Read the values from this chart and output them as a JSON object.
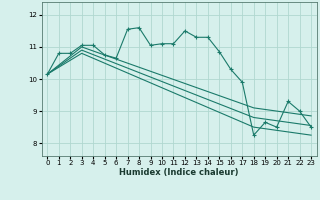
{
  "xlabel": "Humidex (Indice chaleur)",
  "xlim": [
    -0.5,
    23.5
  ],
  "ylim": [
    7.6,
    12.4
  ],
  "yticks": [
    8,
    9,
    10,
    11,
    12
  ],
  "xticks": [
    0,
    1,
    2,
    3,
    4,
    5,
    6,
    7,
    8,
    9,
    10,
    11,
    12,
    13,
    14,
    15,
    16,
    17,
    18,
    19,
    20,
    21,
    22,
    23
  ],
  "bg_color": "#d6f0ec",
  "grid_color": "#b0d8d0",
  "line_color": "#1a7a6a",
  "main_line": {
    "x": [
      0,
      1,
      2,
      3,
      4,
      5,
      6,
      7,
      8,
      9,
      10,
      11,
      12,
      13,
      14,
      15,
      16,
      17,
      18,
      19,
      20,
      21,
      22,
      23
    ],
    "y": [
      10.15,
      10.8,
      10.8,
      11.05,
      11.05,
      10.75,
      10.65,
      11.55,
      11.6,
      11.05,
      11.1,
      11.1,
      11.5,
      11.3,
      11.3,
      10.85,
      10.3,
      9.9,
      8.25,
      8.65,
      8.5,
      9.3,
      9.0,
      8.5
    ]
  },
  "straight_lines": [
    {
      "x": [
        0,
        3,
        18,
        23
      ],
      "y": [
        10.15,
        11.0,
        9.1,
        8.85
      ]
    },
    {
      "x": [
        0,
        3,
        18,
        23
      ],
      "y": [
        10.15,
        10.9,
        8.8,
        8.55
      ]
    },
    {
      "x": [
        0,
        3,
        18,
        23
      ],
      "y": [
        10.15,
        10.8,
        8.5,
        8.25
      ]
    }
  ]
}
